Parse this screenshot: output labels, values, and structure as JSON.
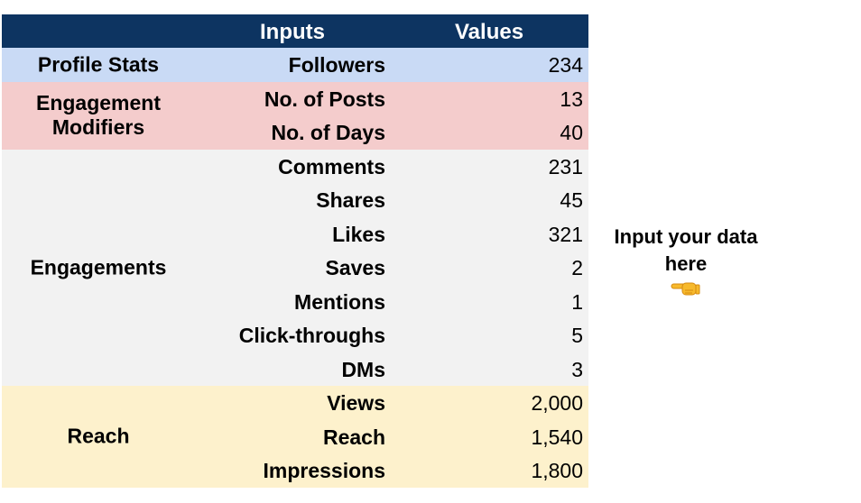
{
  "header": {
    "inputs_label": "Inputs",
    "values_label": "Values"
  },
  "colors": {
    "header_bg": "#0d3461",
    "profile_bg": "#c9daf5",
    "engagement_modifiers_bg": "#f4cccc",
    "engagements_bg": "#f2f2f2",
    "reach_bg": "#fdf1cc"
  },
  "sections": [
    {
      "label": "Profile Stats",
      "rows": [
        {
          "input": "Followers",
          "value": "234"
        }
      ]
    },
    {
      "label": "Engagement Modifiers",
      "rows": [
        {
          "input": "No. of Posts",
          "value": "13"
        },
        {
          "input": "No. of Days",
          "value": "40"
        }
      ]
    },
    {
      "label": "Engagements",
      "rows": [
        {
          "input": "Comments",
          "value": "231"
        },
        {
          "input": "Shares",
          "value": "45"
        },
        {
          "input": "Likes",
          "value": "321"
        },
        {
          "input": "Saves",
          "value": "2"
        },
        {
          "input": "Mentions",
          "value": "1"
        },
        {
          "input": "Click-throughs",
          "value": "5"
        },
        {
          "input": "DMs",
          "value": "3"
        }
      ]
    },
    {
      "label": "Reach",
      "rows": [
        {
          "input": "Views",
          "value": "2,000"
        },
        {
          "input": "Reach",
          "value": "1,540"
        },
        {
          "input": "Impressions",
          "value": "1,800"
        }
      ]
    }
  ],
  "note": {
    "text": "Input your data here",
    "icon": "pointing-left-hand-icon"
  }
}
